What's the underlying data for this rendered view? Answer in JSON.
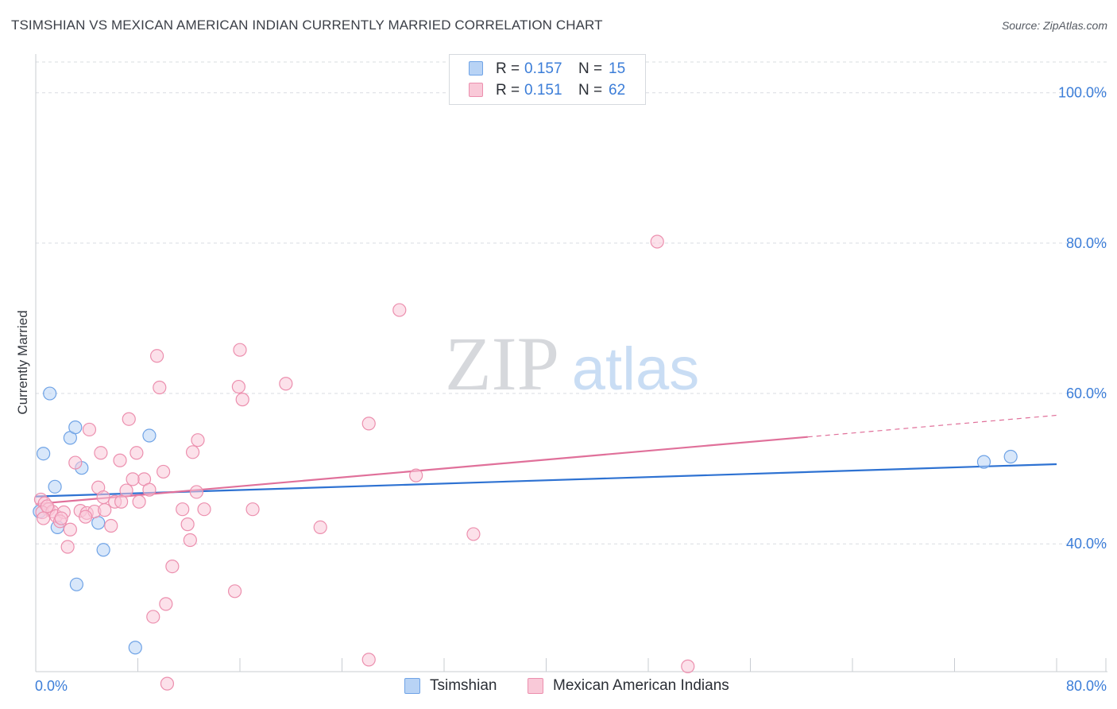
{
  "title": "TSIMSHIAN VS MEXICAN AMERICAN INDIAN CURRENTLY MARRIED CORRELATION CHART",
  "source": "Source: ZipAtlas.com",
  "watermark": {
    "zip": "ZIP",
    "atlas": "atlas"
  },
  "colors": {
    "blue_fill": "#b8d3f5",
    "blue_stroke": "#6fa3e6",
    "blue_line": "#2e72d2",
    "pink_fill": "#f9c9d8",
    "pink_stroke": "#ec8fae",
    "pink_line": "#e0709a",
    "axis_text": "#3b7dd8",
    "grid": "#d9dce1"
  },
  "legend": {
    "rows": [
      {
        "r_label": "R =",
        "r_value": "0.157",
        "n_label": "N =",
        "n_value": "15"
      },
      {
        "r_label": "R =",
        "r_value": "0.151",
        "n_label": "N =",
        "n_value": "62"
      }
    ]
  },
  "bottom_legend": {
    "series1": "Tsimshian",
    "series2": "Mexican American Indians"
  },
  "chart_data": {
    "type": "scatter",
    "title": "TSIMSHIAN VS MEXICAN AMERICAN INDIAN CURRENTLY MARRIED CORRELATION CHART",
    "xlabel": "",
    "ylabel": "Currently Married",
    "xlim": [
      0,
      80
    ],
    "ylim": [
      23,
      106
    ],
    "x_tick_labels": [
      {
        "value": 0,
        "label": "0.0%"
      },
      {
        "value": 80,
        "label": "80.0%"
      }
    ],
    "y_tick_labels": [
      {
        "value": 100,
        "label": "100.0%"
      },
      {
        "value": 80,
        "label": "80.0%"
      },
      {
        "value": 60,
        "label": "60.0%"
      },
      {
        "value": 40,
        "label": "40.0%"
      }
    ],
    "y_gridlines": [
      40,
      60,
      80,
      100
    ],
    "x_minor_ticks": [
      8,
      16,
      24,
      32,
      40,
      48,
      56,
      64,
      72,
      80
    ],
    "series": [
      {
        "name": "Tsimshian",
        "color": "blue",
        "points": [
          [
            0.6,
            52.0
          ],
          [
            1.1,
            60.0
          ],
          [
            1.5,
            47.6
          ],
          [
            2.7,
            54.1
          ],
          [
            3.1,
            55.5
          ],
          [
            3.6,
            50.1
          ],
          [
            8.9,
            54.4
          ],
          [
            0.3,
            44.3
          ],
          [
            1.7,
            42.2
          ],
          [
            4.9,
            42.8
          ],
          [
            5.3,
            39.2
          ],
          [
            3.2,
            34.6
          ],
          [
            7.8,
            26.2
          ],
          [
            74.3,
            50.9
          ],
          [
            76.4,
            51.6
          ]
        ],
        "trend": {
          "x": [
            0,
            80
          ],
          "y": [
            46.3,
            50.6
          ],
          "dashed_from": null
        }
      },
      {
        "name": "Mexican American Indians",
        "color": "pink",
        "points": [
          [
            48.7,
            80.2
          ],
          [
            28.5,
            71.1
          ],
          [
            9.5,
            65.0
          ],
          [
            16.0,
            65.8
          ],
          [
            9.7,
            60.8
          ],
          [
            15.9,
            60.9
          ],
          [
            19.6,
            61.3
          ],
          [
            16.2,
            59.2
          ],
          [
            26.1,
            56.0
          ],
          [
            7.3,
            56.6
          ],
          [
            4.2,
            55.2
          ],
          [
            12.7,
            53.8
          ],
          [
            5.1,
            52.1
          ],
          [
            7.9,
            52.1
          ],
          [
            12.3,
            52.2
          ],
          [
            3.1,
            50.8
          ],
          [
            6.6,
            51.1
          ],
          [
            10.0,
            49.6
          ],
          [
            8.5,
            48.6
          ],
          [
            7.6,
            48.6
          ],
          [
            29.8,
            49.1
          ],
          [
            4.9,
            47.5
          ],
          [
            7.1,
            47.1
          ],
          [
            8.9,
            47.2
          ],
          [
            12.6,
            46.9
          ],
          [
            5.3,
            46.2
          ],
          [
            6.2,
            45.6
          ],
          [
            6.7,
            45.6
          ],
          [
            8.1,
            45.6
          ],
          [
            0.4,
            45.9
          ],
          [
            0.7,
            45.4
          ],
          [
            1.0,
            44.6
          ],
          [
            0.5,
            44.2
          ],
          [
            1.3,
            44.3
          ],
          [
            1.6,
            43.7
          ],
          [
            2.2,
            44.2
          ],
          [
            3.5,
            44.4
          ],
          [
            4.0,
            44.1
          ],
          [
            4.6,
            44.3
          ],
          [
            5.4,
            44.5
          ],
          [
            11.5,
            44.6
          ],
          [
            13.2,
            44.6
          ],
          [
            17.0,
            44.6
          ],
          [
            0.6,
            43.4
          ],
          [
            1.9,
            43.0
          ],
          [
            3.9,
            43.6
          ],
          [
            5.9,
            42.4
          ],
          [
            11.9,
            42.6
          ],
          [
            22.3,
            42.2
          ],
          [
            2.7,
            41.9
          ],
          [
            12.1,
            40.5
          ],
          [
            34.3,
            41.3
          ],
          [
            2.5,
            39.6
          ],
          [
            10.7,
            37.0
          ],
          [
            15.6,
            33.7
          ],
          [
            10.2,
            32.0
          ],
          [
            9.2,
            30.3
          ],
          [
            26.1,
            24.6
          ],
          [
            51.1,
            23.7
          ],
          [
            10.3,
            21.4
          ],
          [
            0.9,
            45.0
          ],
          [
            2.0,
            43.4
          ]
        ],
        "trend": {
          "x": [
            0,
            80
          ],
          "y": [
            45.3,
            57.1
          ],
          "dashed_from": 60.5
        }
      }
    ]
  }
}
